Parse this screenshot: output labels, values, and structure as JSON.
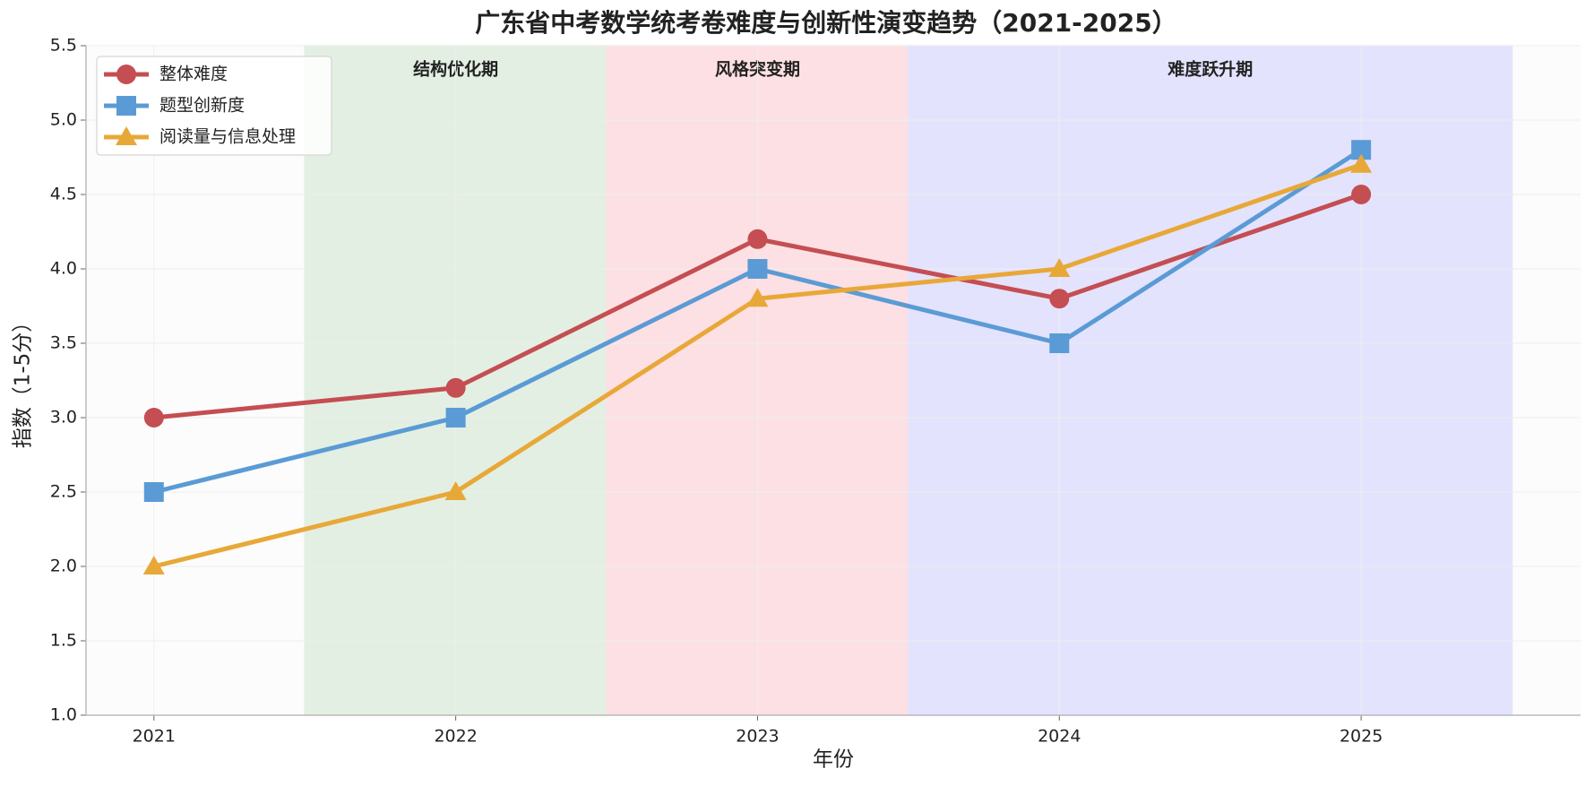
{
  "chart_data": {
    "type": "line",
    "title": "广东省中考数学统考卷难度与创新性演变趋势（2021-2025）",
    "x_label": "年份",
    "y_label": "指数（1-5分）",
    "x": [
      2021,
      2022,
      2023,
      2024,
      2025
    ],
    "series": [
      {
        "name": "整体难度",
        "color": "#c44e52",
        "marker": "circle",
        "values": [
          3.0,
          3.2,
          4.2,
          3.8,
          4.5
        ]
      },
      {
        "name": "题型创新度",
        "color": "#5b9bd5",
        "marker": "square",
        "values": [
          2.5,
          3.0,
          4.0,
          3.5,
          4.8
        ]
      },
      {
        "name": "阅读量与信息处理",
        "color": "#e8a838",
        "marker": "triangle",
        "values": [
          2.0,
          2.5,
          3.8,
          4.0,
          4.7
        ]
      }
    ],
    "spans": [
      {
        "label": "结构优化期",
        "start": 2021.5,
        "end": 2022.5,
        "color": "#e3efe3",
        "label_color": "#5a8a5a"
      },
      {
        "label": "风格突变期",
        "start": 2022.5,
        "end": 2023.5,
        "color": "#fde0e3",
        "label_color": "#c44e52"
      },
      {
        "label": "难度跃升期",
        "start": 2023.5,
        "end": 2025.5,
        "color": "#e3e3fd",
        "label_color": "#5b9bd5"
      }
    ],
    "xlim": [
      2020.775,
      2025.727
    ],
    "xticks": [
      2021,
      2022,
      2023,
      2024,
      2025
    ],
    "ylim": [
      1.0,
      5.5
    ],
    "yticks": [
      {
        "value": 1,
        "label": "1.0"
      },
      1.5,
      {
        "value": 2,
        "label": "2.0"
      },
      2.5,
      {
        "value": 3,
        "label": "3.0"
      },
      3.5,
      {
        "value": 4,
        "label": "4.0"
      },
      4.5,
      {
        "value": 5,
        "label": "5.0"
      },
      5.5
    ],
    "grid": true,
    "legend": "upper left"
  }
}
